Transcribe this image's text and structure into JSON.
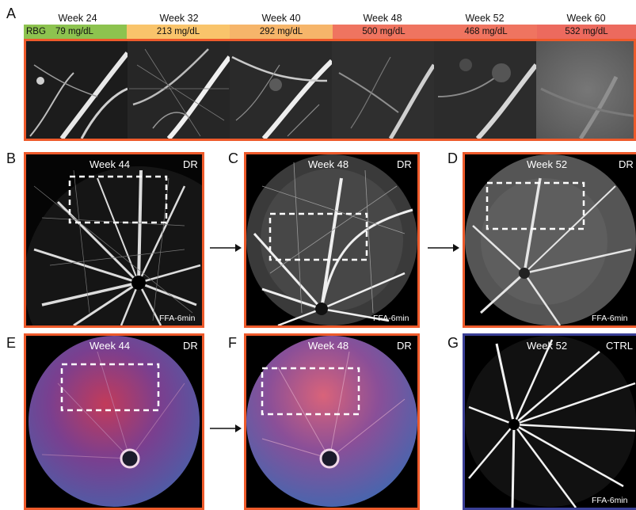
{
  "panels": {
    "A": "A",
    "B": "B",
    "C": "C",
    "D": "D",
    "E": "E",
    "F": "F",
    "G": "G"
  },
  "timeline": {
    "row_label": "RBG",
    "items": [
      {
        "week": "Week 24",
        "rbg": "79 mg/dL",
        "color": "#8dc34f"
      },
      {
        "week": "Week 32",
        "rbg": "213 mg/dL",
        "color": "#f9c46b"
      },
      {
        "week": "Week 40",
        "rbg": "292 mg/dL",
        "color": "#f6b56a"
      },
      {
        "week": "Week 48",
        "rbg": "500 mg/dL",
        "color": "#ef7460"
      },
      {
        "week": "Week 52",
        "rbg": "468 mg/dL",
        "color": "#ef7460"
      },
      {
        "week": "Week 60",
        "rbg": "532 mg/dL",
        "color": "#ec6a5e"
      }
    ]
  },
  "images": {
    "B": {
      "week": "Week 44",
      "group": "DR",
      "modality": "FFA-6min"
    },
    "C": {
      "week": "Week 48",
      "group": "DR",
      "modality": "FFA-6min"
    },
    "D": {
      "week": "Week 52",
      "group": "DR",
      "modality": "FFA-6min"
    },
    "E": {
      "week": "Week 44",
      "group": "DR"
    },
    "F": {
      "week": "Week 48",
      "group": "DR"
    },
    "G": {
      "week": "Week 52",
      "group": "CTRL",
      "modality": "FFA-6min"
    }
  },
  "colors": {
    "dr_border": "#ee5a2b",
    "ctrl_border": "#3a3f96",
    "dashed_box": "#ffffff"
  }
}
